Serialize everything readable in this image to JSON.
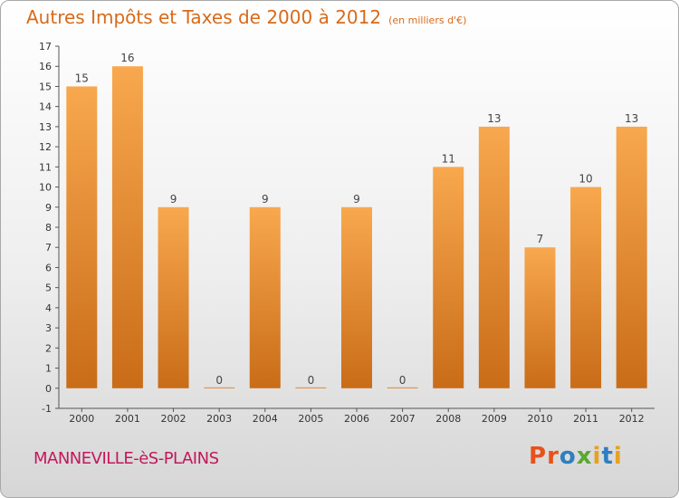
{
  "title": {
    "main": "Autres Impôts et Taxes de 2000 à 2012",
    "unit": "(en milliers d'€)"
  },
  "commune": "MANNEVILLE-èS-PLAINS",
  "logo": {
    "text": "Proxiti",
    "letters": [
      "P",
      "r",
      "o",
      "x",
      "i",
      "t",
      "i"
    ],
    "colors": [
      "#e8521a",
      "#e8521a",
      "#2e7fc0",
      "#5aa832",
      "#e8a020",
      "#2e7fc0",
      "#e8a020"
    ]
  },
  "colors": {
    "bar_light": "#f8a84e",
    "bar_dark": "#c96c18",
    "title": "#d86a1a",
    "commune": "#c2185b"
  },
  "chart_data": {
    "type": "bar",
    "categories": [
      "2000",
      "2001",
      "2002",
      "2003",
      "2004",
      "2005",
      "2006",
      "2007",
      "2008",
      "2009",
      "2010",
      "2011",
      "2012"
    ],
    "values": [
      15,
      16,
      9,
      0,
      9,
      0,
      9,
      0,
      11,
      13,
      7,
      10,
      13
    ],
    "yticks": [
      "-1",
      "0",
      "1",
      "2",
      "3",
      "4",
      "5",
      "6",
      "7",
      "8",
      "9",
      "10",
      "11",
      "12",
      "13",
      "14",
      "15",
      "16",
      "17"
    ],
    "ylim": [
      -1,
      17
    ],
    "grid": false,
    "title": "Autres Impôts et Taxes de 2000 à 2012",
    "xlabel": "",
    "ylabel": ""
  }
}
